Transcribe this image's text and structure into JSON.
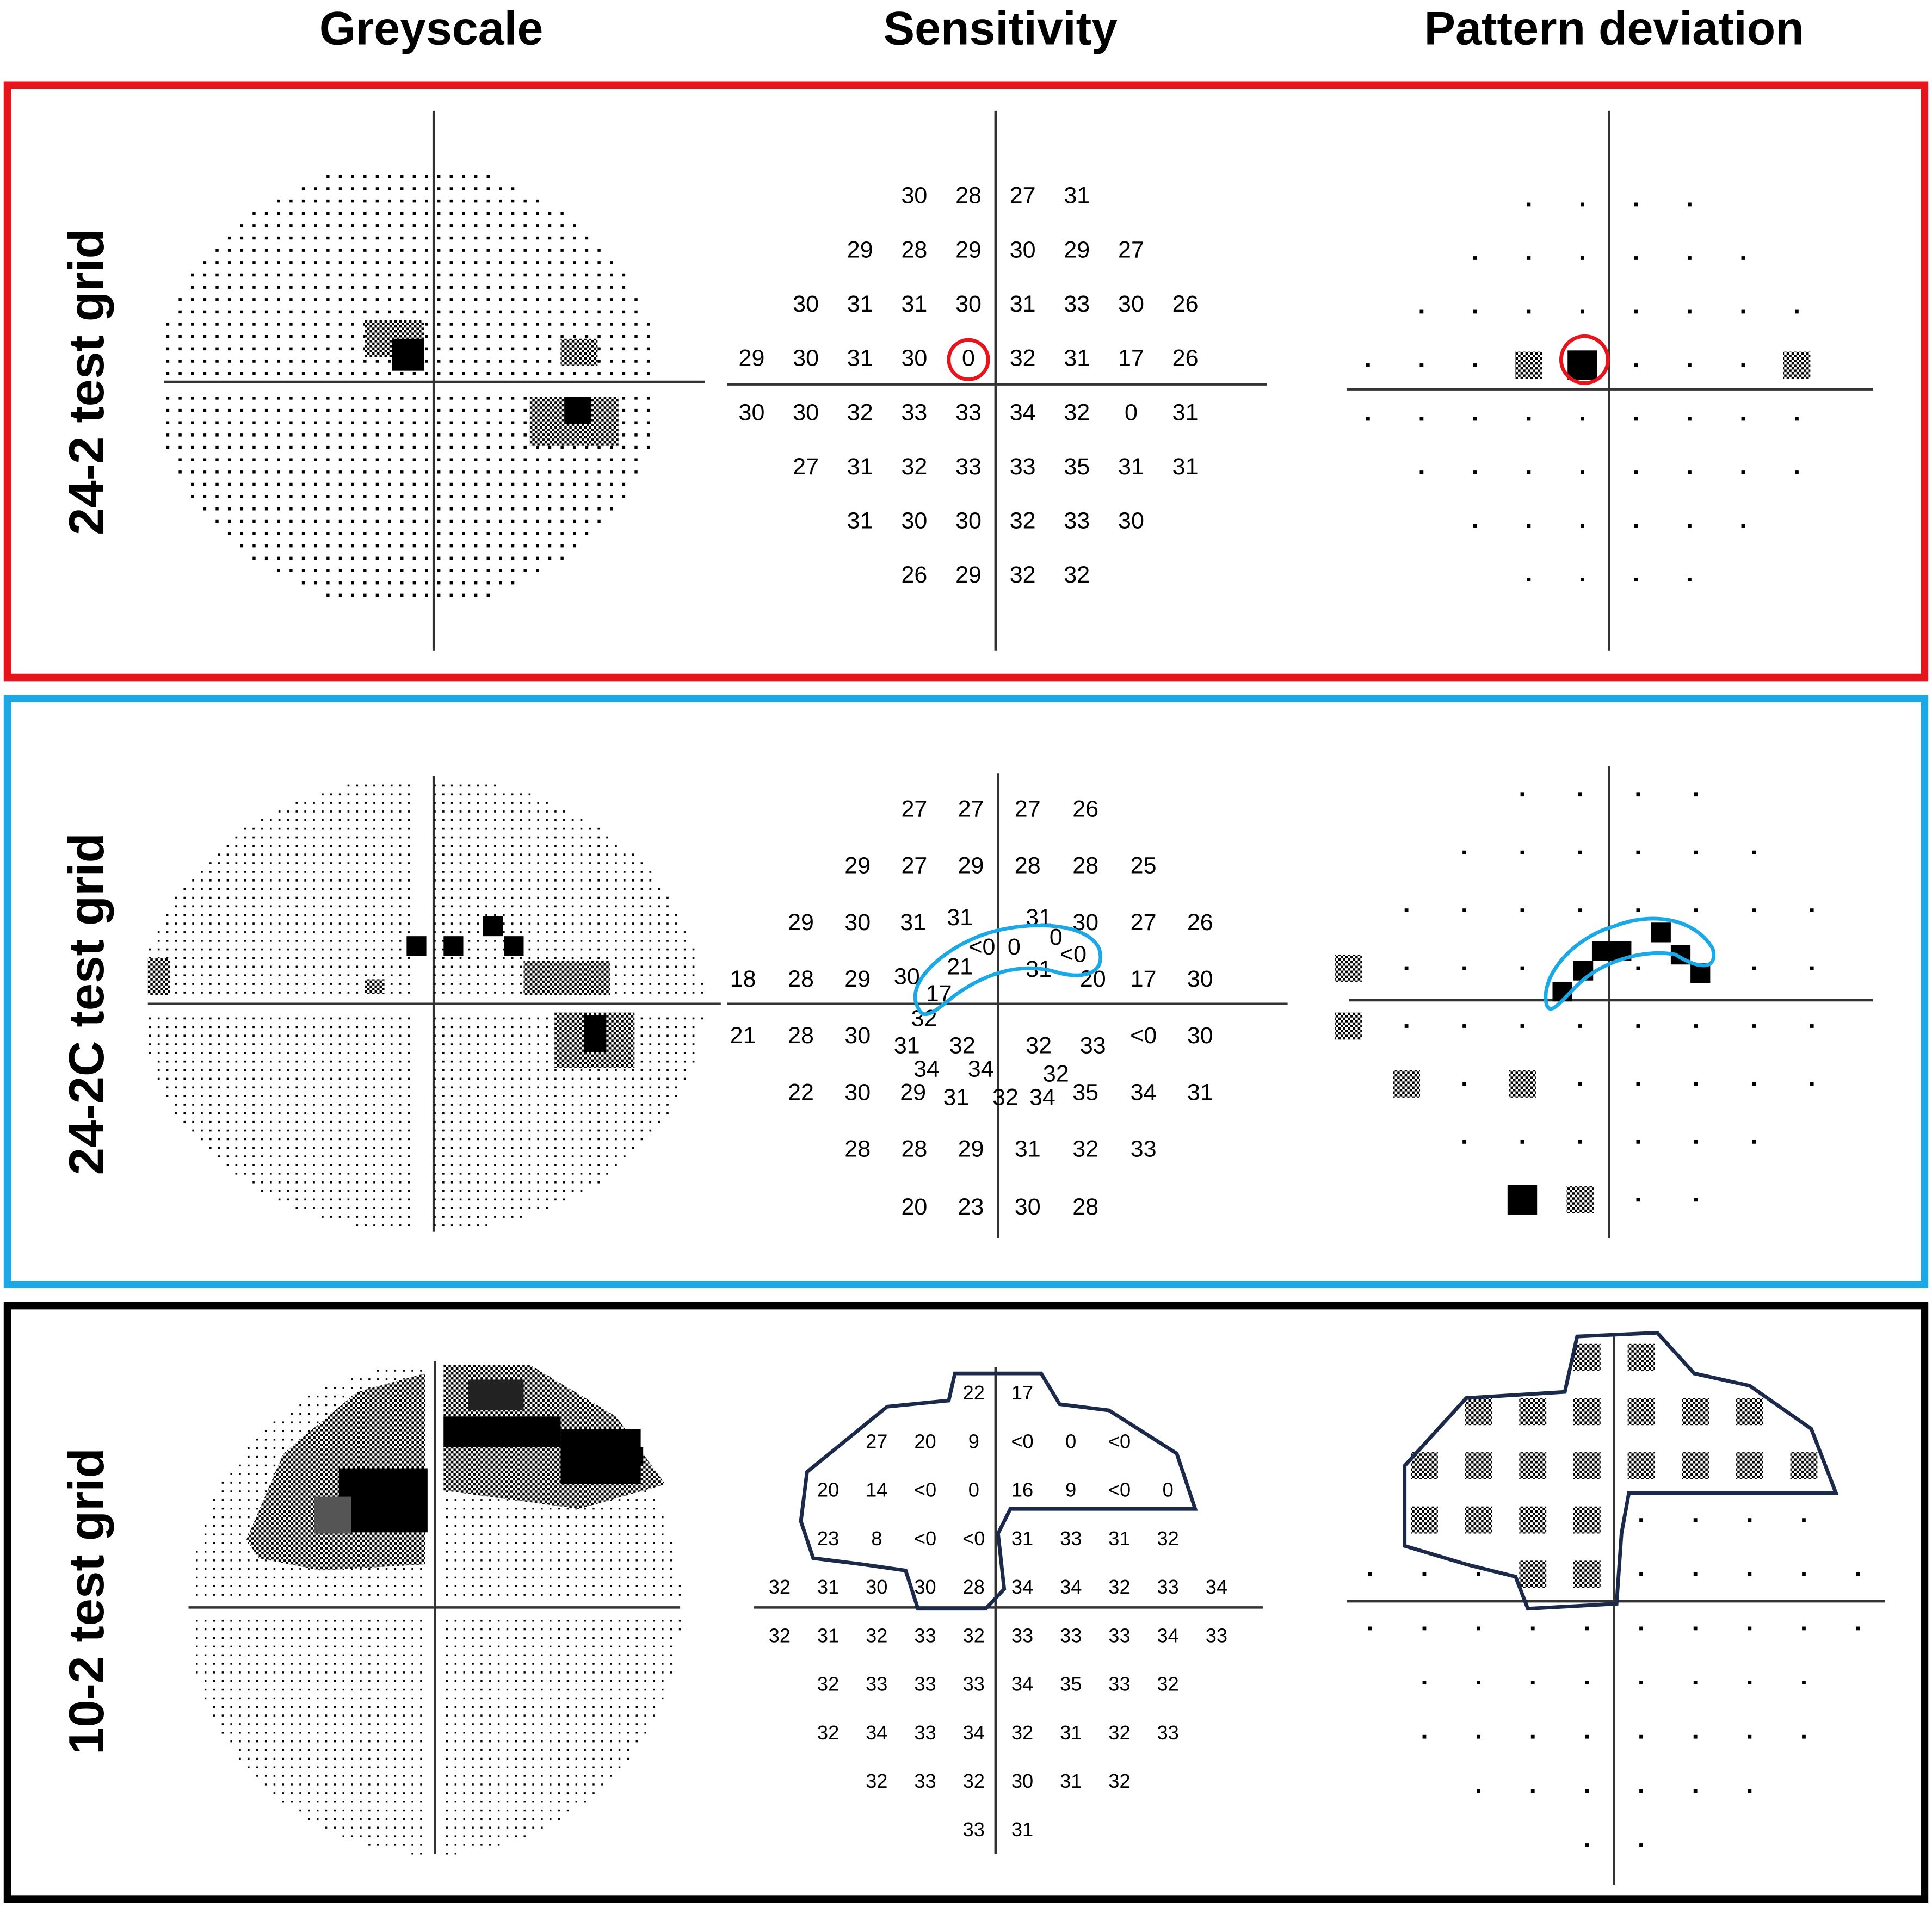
{
  "headers": [
    "Greyscale",
    "Sensitivity",
    "Pattern deviation"
  ],
  "panels": [
    {
      "label": "24-2 test grid",
      "sensitivity": [
        30,
        28,
        27,
        31,
        29,
        28,
        29,
        30,
        29,
        27,
        30,
        31,
        31,
        30,
        31,
        33,
        30,
        26,
        29,
        30,
        31,
        30,
        0,
        32,
        31,
        17,
        26,
        30,
        30,
        32,
        33,
        33,
        34,
        32,
        0,
        31,
        27,
        31,
        32,
        33,
        33,
        35,
        31,
        31,
        31,
        30,
        30,
        32,
        33,
        30,
        26,
        29,
        32,
        32
      ]
    },
    {
      "label": "24-2C test grid",
      "sensitivity": [
        27,
        27,
        27,
        26,
        29,
        27,
        29,
        28,
        28,
        25,
        29,
        30,
        31,
        31,
        31,
        30,
        27,
        26,
        "<0",
        0,
        0,
        "<0",
        18,
        28,
        29,
        30,
        21,
        31,
        20,
        17,
        30,
        17,
        32,
        21,
        28,
        30,
        31,
        32,
        32,
        33,
        "<0",
        30,
        34,
        34,
        32,
        22,
        30,
        29,
        31,
        32,
        34,
        35,
        34,
        31,
        28,
        28,
        29,
        31,
        32,
        33,
        20,
        23,
        30,
        28
      ]
    },
    {
      "label": "10-2 test grid",
      "sensitivity": [
        22,
        17,
        27,
        20,
        9,
        "<0",
        0,
        "<0",
        20,
        14,
        "<0",
        0,
        16,
        9,
        "<0",
        0,
        23,
        8,
        "<0",
        "<0",
        31,
        33,
        31,
        32,
        32,
        31,
        30,
        30,
        28,
        34,
        34,
        32,
        33,
        34,
        32,
        31,
        32,
        33,
        32,
        33,
        33,
        33,
        34,
        33,
        32,
        33,
        33,
        33,
        34,
        35,
        33,
        32,
        32,
        34,
        33,
        34,
        32,
        31,
        32,
        33,
        32,
        33,
        32,
        30,
        31,
        32,
        33,
        31
      ]
    }
  ]
}
